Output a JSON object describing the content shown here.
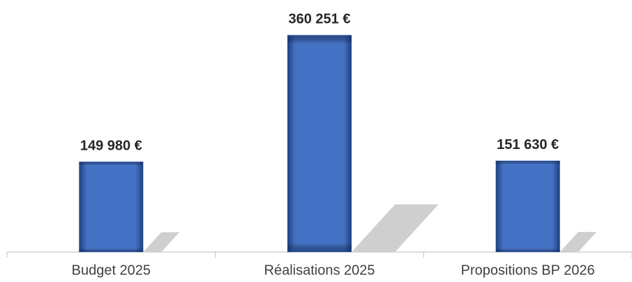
{
  "chart_data": {
    "type": "bar",
    "categories": [
      "Budget 2025",
      "Réalisations 2025",
      "Propositions BP 2026"
    ],
    "values": [
      149980,
      360251,
      151630
    ],
    "value_labels": [
      "149 980 €",
      "360 251 €",
      "151 630 €"
    ],
    "color": "#4472c4",
    "ylim": [
      0,
      400000
    ]
  }
}
